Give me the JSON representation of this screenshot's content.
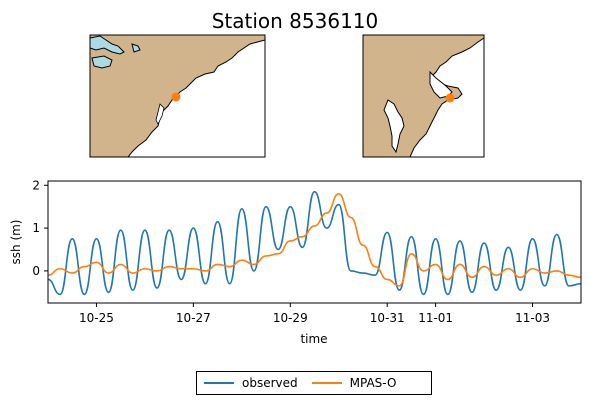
{
  "figure": {
    "title": "Station 8536110",
    "colors": {
      "land": "#D2B48C",
      "water": "#ADD8E6",
      "ocean": "#ffffff",
      "station": "#ff7f0e"
    }
  },
  "maps": [
    {
      "name": "regional-map",
      "station_marker": "station-dot"
    },
    {
      "name": "local-map",
      "station_marker": "station-dot"
    }
  ],
  "chart_data": {
    "type": "line",
    "xlabel": "time",
    "ylabel": "ssh (m)",
    "xlim": [
      "2024-10-24",
      "2024-11-04"
    ],
    "ylim": [
      -0.75,
      2.1
    ],
    "x_ticks": [
      "10-25",
      "10-27",
      "10-29",
      "10-31",
      "11-01",
      "11-03"
    ],
    "x_tick_dates": [
      "2024-10-25",
      "2024-10-27",
      "2024-10-29",
      "2024-10-31",
      "2024-11-01",
      "2024-11-03"
    ],
    "y_ticks": [
      "0",
      "1",
      "2"
    ],
    "y_tick_values": [
      0,
      1,
      2
    ],
    "grid": false,
    "legend_placement": "bottom-center",
    "series": [
      {
        "name": "observed",
        "color": "#1f77b4",
        "x": [
          "2024-10-24 00:00",
          "2024-10-24 06:00",
          "2024-10-24 12:00",
          "2024-10-24 18:00",
          "2024-10-25 00:00",
          "2024-10-25 06:00",
          "2024-10-25 12:00",
          "2024-10-25 18:00",
          "2024-10-26 00:00",
          "2024-10-26 06:00",
          "2024-10-26 12:00",
          "2024-10-26 18:00",
          "2024-10-27 00:00",
          "2024-10-27 06:00",
          "2024-10-27 12:00",
          "2024-10-27 18:00",
          "2024-10-28 00:00",
          "2024-10-28 06:00",
          "2024-10-28 12:00",
          "2024-10-28 18:00",
          "2024-10-29 00:00",
          "2024-10-29 06:00",
          "2024-10-29 12:00",
          "2024-10-29 18:00",
          "2024-10-30 00:00",
          "2024-10-30 06:00",
          "2024-10-30 12:00",
          "2024-10-30 18:00",
          "2024-10-31 00:00",
          "2024-10-31 06:00",
          "2024-10-31 12:00",
          "2024-10-31 18:00",
          "2024-11-01 00:00",
          "2024-11-01 06:00",
          "2024-11-01 12:00",
          "2024-11-01 18:00",
          "2024-11-02 00:00",
          "2024-11-02 06:00",
          "2024-11-02 12:00",
          "2024-11-02 18:00",
          "2024-11-03 00:00",
          "2024-11-03 06:00",
          "2024-11-03 12:00",
          "2024-11-03 18:00",
          "2024-11-04 00:00"
        ],
        "values": [
          -0.2,
          -0.55,
          0.75,
          -0.55,
          0.75,
          -0.5,
          0.95,
          -0.45,
          0.95,
          -0.4,
          0.95,
          -0.2,
          1.0,
          -0.3,
          1.15,
          -0.3,
          1.45,
          0.0,
          1.5,
          0.5,
          1.5,
          0.55,
          1.85,
          1.0,
          1.55,
          0.0,
          -0.05,
          -0.1,
          0.9,
          -0.45,
          0.8,
          -0.55,
          0.75,
          -0.55,
          0.7,
          -0.5,
          0.65,
          -0.45,
          0.55,
          -0.45,
          0.75,
          -0.35,
          0.85,
          -0.35,
          -0.3
        ]
      },
      {
        "name": "MPAS-O",
        "color": "#ff7f0e",
        "x": [
          "2024-10-24 00:00",
          "2024-10-24 06:00",
          "2024-10-24 12:00",
          "2024-10-24 18:00",
          "2024-10-25 00:00",
          "2024-10-25 06:00",
          "2024-10-25 12:00",
          "2024-10-25 18:00",
          "2024-10-26 00:00",
          "2024-10-26 06:00",
          "2024-10-26 12:00",
          "2024-10-26 18:00",
          "2024-10-27 00:00",
          "2024-10-27 06:00",
          "2024-10-27 12:00",
          "2024-10-27 18:00",
          "2024-10-28 00:00",
          "2024-10-28 06:00",
          "2024-10-28 12:00",
          "2024-10-28 18:00",
          "2024-10-29 00:00",
          "2024-10-29 06:00",
          "2024-10-29 12:00",
          "2024-10-29 18:00",
          "2024-10-30 00:00",
          "2024-10-30 06:00",
          "2024-10-30 12:00",
          "2024-10-30 18:00",
          "2024-10-31 00:00",
          "2024-10-31 06:00",
          "2024-10-31 12:00",
          "2024-10-31 18:00",
          "2024-11-01 00:00",
          "2024-11-01 06:00",
          "2024-11-01 12:00",
          "2024-11-01 18:00",
          "2024-11-02 00:00",
          "2024-11-02 06:00",
          "2024-11-02 12:00",
          "2024-11-02 18:00",
          "2024-11-03 00:00",
          "2024-11-03 06:00",
          "2024-11-03 12:00",
          "2024-11-03 18:00",
          "2024-11-04 00:00"
        ],
        "values": [
          -0.1,
          0.05,
          -0.05,
          0.1,
          0.2,
          -0.05,
          0.15,
          -0.05,
          0.05,
          0.0,
          0.1,
          0.05,
          0.05,
          0.0,
          0.15,
          0.1,
          0.25,
          0.15,
          0.35,
          0.4,
          0.7,
          0.8,
          1.05,
          1.35,
          1.8,
          1.25,
          0.6,
          0.1,
          -0.2,
          -0.35,
          0.4,
          0.0,
          0.15,
          -0.2,
          0.15,
          -0.15,
          0.1,
          -0.1,
          0.05,
          -0.15,
          0.05,
          -0.05,
          0.0,
          -0.1,
          -0.15
        ]
      }
    ]
  }
}
